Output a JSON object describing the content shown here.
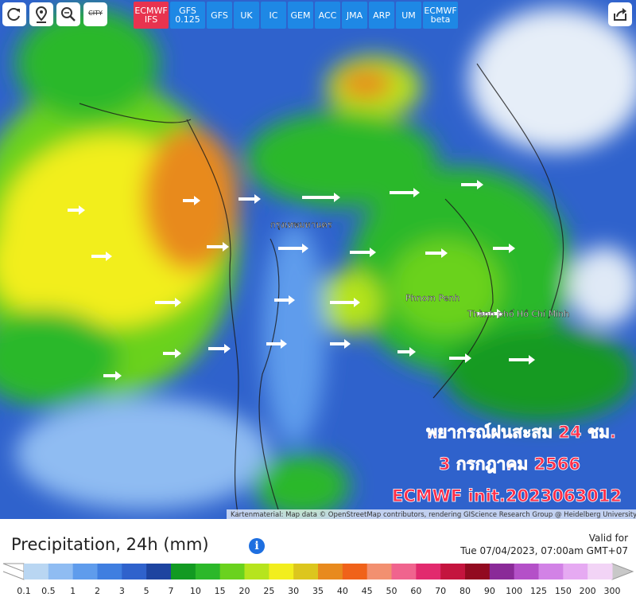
{
  "toolbar": {
    "city": "CITY",
    "models": [
      {
        "label": "ECMWF IFS",
        "active": true
      },
      {
        "label": "GFS 0.125",
        "active": false
      },
      {
        "label": "GFS",
        "active": false
      },
      {
        "label": "UK",
        "active": false
      },
      {
        "label": "IC",
        "active": false
      },
      {
        "label": "GEM",
        "active": false
      },
      {
        "label": "ACC",
        "active": false
      },
      {
        "label": "JMA",
        "active": false
      },
      {
        "label": "ARP",
        "active": false
      },
      {
        "label": "UM",
        "active": false
      },
      {
        "label": "ECMWF beta",
        "active": false
      }
    ]
  },
  "map": {
    "places": [
      "กรุงเทพมหานคร",
      "Phnom Penh",
      "Thành phố Hồ Chí Minh"
    ],
    "overlay": [
      "พยากรณ์ฝนสะสม 24 ชม.",
      "3 กรกฎาคม 2566",
      "ECMWF init.2023063012"
    ],
    "attribution": "Kartenmaterial: Map data © OpenStreetMap contributors, rendering GIScience Research Group @ Heidelberg University"
  },
  "footer": {
    "title": "Precipitation, 24h (mm)",
    "valid_label": "Valid for",
    "valid_time": "Tue 07/04/2023, 07:00am GMT+07"
  },
  "legend": {
    "ticks": [
      0.1,
      0.5,
      1,
      2,
      3,
      5,
      7,
      10,
      15,
      20,
      25,
      30,
      35,
      40,
      45,
      50,
      60,
      70,
      80,
      90,
      100,
      125,
      150,
      200,
      300
    ],
    "colors": [
      "#b9d6f2",
      "#8fbcf2",
      "#5f9cec",
      "#3f7ee0",
      "#2f62cc",
      "#1d44a0",
      "#129a22",
      "#2cb82a",
      "#6ad21e",
      "#b6e41e",
      "#f2ee1e",
      "#dcc61e",
      "#e88a1e",
      "#f0621a",
      "#f29070",
      "#f0648e",
      "#e22a6e",
      "#c4143e",
      "#920a20",
      "#8a2a98",
      "#b450c8",
      "#d282e6",
      "#e6aaf2",
      "#f2d4f6"
    ]
  }
}
